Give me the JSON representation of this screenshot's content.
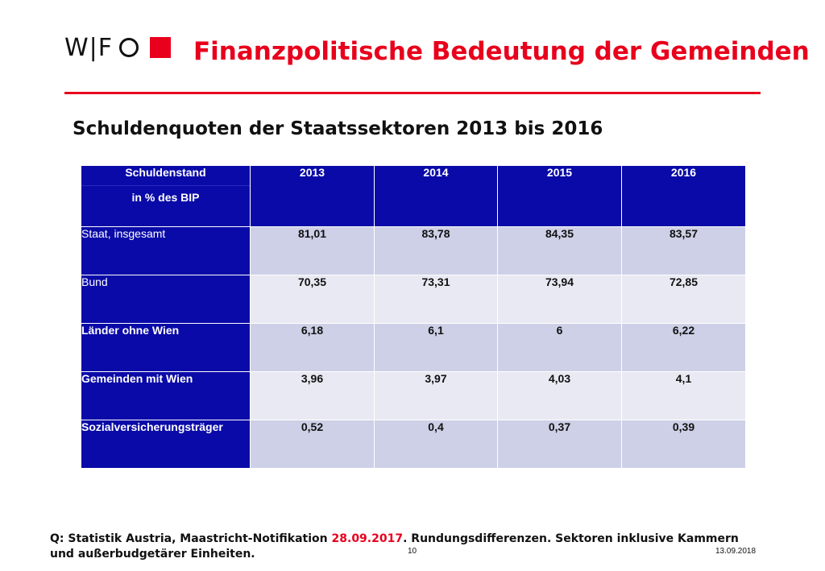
{
  "logo": {
    "text": "W|F",
    "accent_color": "#e8001c"
  },
  "slide_title": "Finanzpolitische Bedeutung der Gemeinden",
  "subtitle": "Schuldenquoten der Staatssektoren 2013 bis 2016",
  "table": {
    "header_line1": "Schuldenstand",
    "header_line2": "in % des BIP",
    "years": [
      "2013",
      "2014",
      "2015",
      "2016"
    ],
    "rows": [
      {
        "label": "Staat, insgesamt",
        "values": [
          "81,01",
          "83,78",
          "84,35",
          "83,57"
        ]
      },
      {
        "label": "Bund",
        "values": [
          "70,35",
          "73,31",
          "73,94",
          "72,85"
        ]
      },
      {
        "label": "Länder ohne Wien",
        "values": [
          "6,18",
          "6,1",
          "6",
          "6,22"
        ]
      },
      {
        "label": "Gemeinden mit Wien",
        "values": [
          "3,96",
          "3,97",
          "4,03",
          "4,1"
        ]
      },
      {
        "label": "Sozialversicherungsträger",
        "values": [
          "0,52",
          "0,4",
          "0,37",
          "0,39"
        ]
      }
    ],
    "colors": {
      "header_bg": "#0a0aa8",
      "row_odd": "#cdd0e6",
      "row_even": "#e8e9f2"
    }
  },
  "footer": {
    "part1": "Q: Statistik Austria, Maastricht-Notifikation ",
    "date_highlight": "28.09.2017",
    "part2": ". Rundungsdifferenzen. Sektoren inklusive Kammern und außerbudgetärer Einheiten."
  },
  "page_number": "10",
  "date": "13.09.2018"
}
